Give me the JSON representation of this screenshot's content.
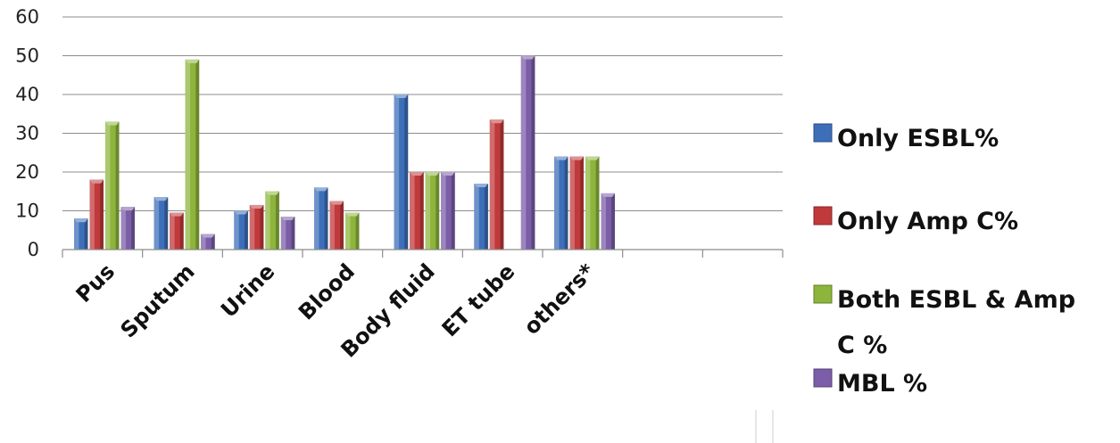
{
  "chart_data": {
    "type": "bar",
    "categories": [
      "Pus",
      "Sputum",
      "Urine",
      "Blood",
      "Body fluid",
      "ET tube",
      "others*",
      "",
      ""
    ],
    "series": [
      {
        "name": "Only ESBL%",
        "color": "#3d6fb8",
        "values": [
          8,
          13.5,
          10,
          16,
          40,
          17,
          24,
          null,
          null
        ]
      },
      {
        "name": "Only Amp C%",
        "color": "#c0393b",
        "values": [
          18,
          9.5,
          11.5,
          12.5,
          20,
          33.5,
          24,
          null,
          null
        ]
      },
      {
        "name": "Both ESBL & Amp C %",
        "color": "#8db53c",
        "values": [
          33,
          49,
          15,
          9.5,
          20,
          null,
          24,
          null,
          null
        ]
      },
      {
        "name": "MBL %",
        "color": "#7b5ea7",
        "values": [
          11,
          4,
          8.5,
          null,
          20,
          50,
          14.5,
          null,
          null
        ]
      }
    ],
    "yticks": [
      0,
      10,
      20,
      30,
      40,
      50,
      60
    ],
    "ylim": [
      0,
      60
    ],
    "grid": true,
    "legend_position": "right",
    "title": "",
    "xlabel": "",
    "ylabel": ""
  }
}
